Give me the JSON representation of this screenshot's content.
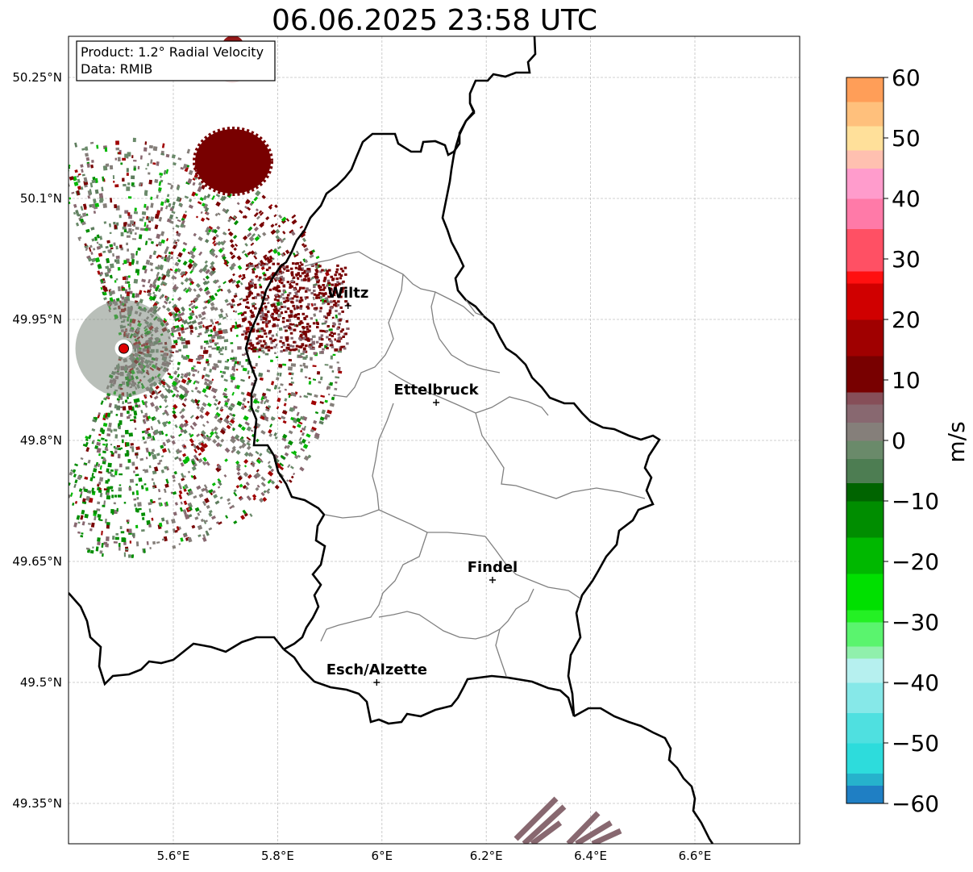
{
  "title": "06.06.2025 23:58 UTC",
  "info_box": {
    "product": "Product: 1.2° Radial Velocity",
    "source": "Data: RMIB"
  },
  "map": {
    "lon_range": [
      5.4,
      6.8
    ],
    "lat_range": [
      49.3,
      50.3
    ],
    "lat_ticks": [
      {
        "value": 50.25,
        "label": "50.25°N"
      },
      {
        "value": 50.1,
        "label": "50.1°N"
      },
      {
        "value": 49.95,
        "label": "49.95°N"
      },
      {
        "value": 49.8,
        "label": "49.8°N"
      },
      {
        "value": 49.65,
        "label": "49.65°N"
      },
      {
        "value": 49.5,
        "label": "49.5°N"
      },
      {
        "value": 49.35,
        "label": "49.35°N"
      }
    ],
    "lon_ticks": [
      {
        "value": 5.6,
        "label": "5.6°E"
      },
      {
        "value": 5.8,
        "label": "5.8°E"
      },
      {
        "value": 6.0,
        "label": "6°E"
      },
      {
        "value": 6.2,
        "label": "6.2°E"
      },
      {
        "value": 6.4,
        "label": "6.4°E"
      },
      {
        "value": 6.6,
        "label": "6.6°E"
      }
    ],
    "gridlines": true,
    "cities": [
      {
        "name": "Wiltz",
        "lon": 5.935,
        "lat": 49.967
      },
      {
        "name": "Ettelbruck",
        "lon": 6.104,
        "lat": 49.847
      },
      {
        "name": "Findel",
        "lon": 6.212,
        "lat": 49.627
      },
      {
        "name": "Esch/Alzette",
        "lon": 5.99,
        "lat": 49.5
      }
    ],
    "radar_site": {
      "lon": 5.505,
      "lat": 49.914,
      "color": "#dd0000"
    }
  },
  "colorbar": {
    "label": "m/s",
    "min": -60,
    "max": 60,
    "ticks": [
      {
        "value": 60,
        "label": "60"
      },
      {
        "value": 50,
        "label": "50"
      },
      {
        "value": 40,
        "label": "40"
      },
      {
        "value": 30,
        "label": "30"
      },
      {
        "value": 20,
        "label": "20"
      },
      {
        "value": 10,
        "label": "10"
      },
      {
        "value": 0,
        "label": "0"
      },
      {
        "value": -10,
        "label": "−10"
      },
      {
        "value": -20,
        "label": "−20"
      },
      {
        "value": -30,
        "label": "−30"
      },
      {
        "value": -40,
        "label": "−40"
      },
      {
        "value": -50,
        "label": "−50"
      },
      {
        "value": -60,
        "label": "−60"
      }
    ],
    "stops": [
      {
        "from": -60,
        "to": -57,
        "color": "#1f7fc4"
      },
      {
        "from": -57,
        "to": -55,
        "color": "#26b2cc"
      },
      {
        "from": -55,
        "to": -50,
        "color": "#2ddcdc"
      },
      {
        "from": -50,
        "to": -45,
        "color": "#4fe0e0"
      },
      {
        "from": -45,
        "to": -40,
        "color": "#86e8e8"
      },
      {
        "from": -40,
        "to": -36,
        "color": "#b6f0ef"
      },
      {
        "from": -36,
        "to": -34,
        "color": "#90f0ac"
      },
      {
        "from": -34,
        "to": -30,
        "color": "#5af46e"
      },
      {
        "from": -30,
        "to": -28,
        "color": "#24f024"
      },
      {
        "from": -28,
        "to": -22,
        "color": "#00e000"
      },
      {
        "from": -22,
        "to": -16,
        "color": "#00b800"
      },
      {
        "from": -16,
        "to": -10,
        "color": "#008d00"
      },
      {
        "from": -10,
        "to": -7,
        "color": "#006400"
      },
      {
        "from": -7,
        "to": -3,
        "color": "#4d7d52"
      },
      {
        "from": -3,
        "to": 0,
        "color": "#6a8a6a"
      },
      {
        "from": 0,
        "to": 3,
        "color": "#857f7a"
      },
      {
        "from": 3,
        "to": 6,
        "color": "#886870"
      },
      {
        "from": 6,
        "to": 8,
        "color": "#864e58"
      },
      {
        "from": 8,
        "to": 14,
        "color": "#780000"
      },
      {
        "from": 14,
        "to": 20,
        "color": "#a00000"
      },
      {
        "from": 20,
        "to": 26,
        "color": "#d00000"
      },
      {
        "from": 26,
        "to": 28,
        "color": "#ff1010"
      },
      {
        "from": 28,
        "to": 35,
        "color": "#ff5064"
      },
      {
        "from": 35,
        "to": 40,
        "color": "#ff7aa8"
      },
      {
        "from": 40,
        "to": 45,
        "color": "#ff9ccc"
      },
      {
        "from": 45,
        "to": 48,
        "color": "#ffc0b0"
      },
      {
        "from": 48,
        "to": 52,
        "color": "#ffe09a"
      },
      {
        "from": 52,
        "to": 56,
        "color": "#ffc07c"
      },
      {
        "from": 56,
        "to": 60,
        "color": "#ff9e58"
      }
    ]
  },
  "colors": {
    "border_country": "#000000",
    "border_canton": "#808080",
    "grid": "#c0c0c0"
  }
}
